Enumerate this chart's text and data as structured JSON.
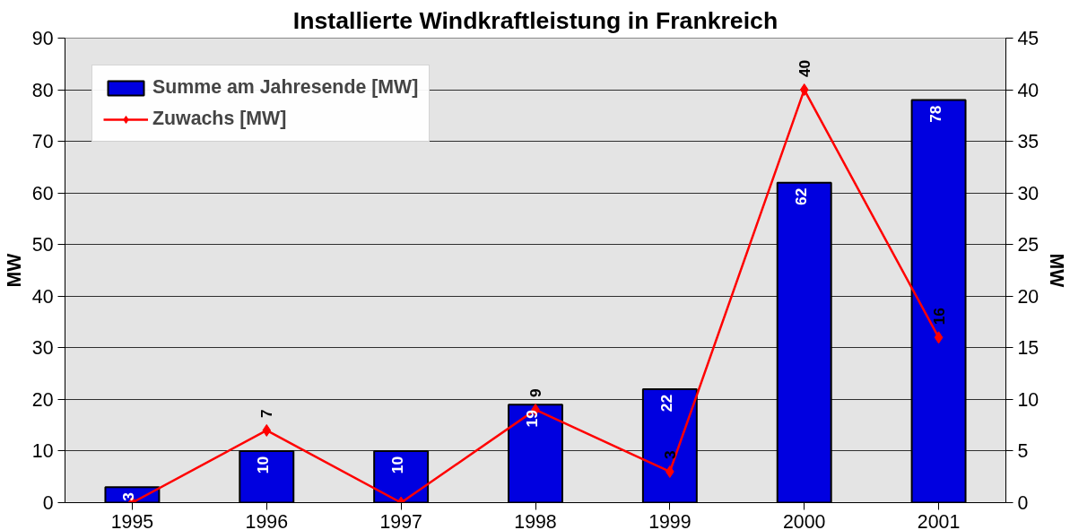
{
  "chart_data": {
    "type": "bar",
    "title": "Installierte Windkraftleistung in Frankreich",
    "categories": [
      "1995",
      "1996",
      "1997",
      "1998",
      "1999",
      "2000",
      "2001"
    ],
    "series": [
      {
        "name": "Summe am Jahresende [MW]",
        "color": "#0000e0",
        "values": [
          3,
          10,
          10,
          19,
          22,
          62,
          78
        ],
        "value_labels": [
          "3",
          "10",
          "10",
          "19",
          "22",
          "62",
          "78"
        ]
      },
      {
        "name": "Zuwachs [MW]",
        "type": "line",
        "axis": "y2",
        "color": "#ff0000",
        "marker": "diamond",
        "values": [
          0,
          7,
          0,
          9,
          3,
          40,
          16
        ],
        "value_labels": [
          null,
          "7",
          null,
          "9",
          "3",
          "40",
          "16"
        ]
      }
    ],
    "ylabel": "MW",
    "y2label": "MW",
    "ylim": [
      0,
      90
    ],
    "yticks": [
      0,
      10,
      20,
      30,
      40,
      50,
      60,
      70,
      80,
      90
    ],
    "y2lim": [
      0,
      45
    ],
    "y2ticks": [
      0,
      5,
      10,
      15,
      20,
      25,
      30,
      35,
      40,
      45
    ],
    "grid": "y",
    "legend": "top left"
  }
}
